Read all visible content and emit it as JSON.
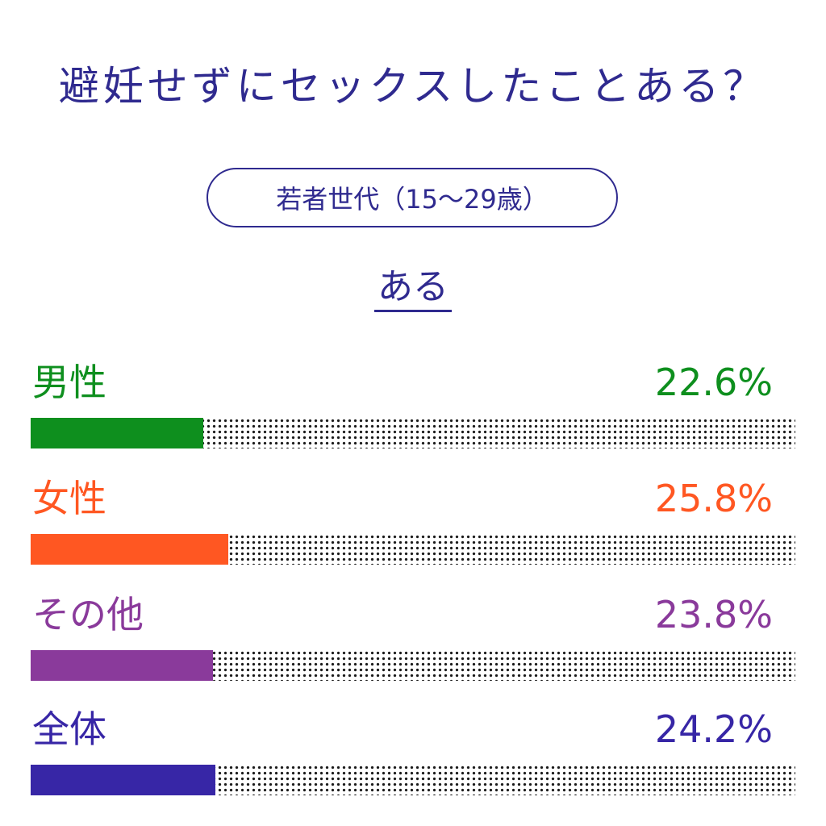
{
  "title": "避妊せずにセックスしたことある？",
  "subtitle": "若者世代（15～29歳）",
  "answer": "ある",
  "colors": {
    "male": "#0e8f1e",
    "female": "#ff5722",
    "other": "#8a3a9b",
    "total": "#3726a6",
    "text": "#2f2a8f"
  },
  "chart_data": {
    "type": "bar",
    "orientation": "horizontal",
    "title": "避妊せずにセックスしたことある？",
    "subtitle": "若者世代（15～29歳）",
    "xlim": [
      0,
      100
    ],
    "categories": [
      "男性",
      "女性",
      "その他",
      "全体"
    ],
    "values": [
      22.6,
      25.8,
      23.8,
      24.2
    ],
    "value_labels": [
      "22.6%",
      "25.8%",
      "23.8%",
      "24.2%"
    ],
    "bar_colors": [
      "#0e8f1e",
      "#ff5722",
      "#8a3a9b",
      "#3726a6"
    ]
  }
}
